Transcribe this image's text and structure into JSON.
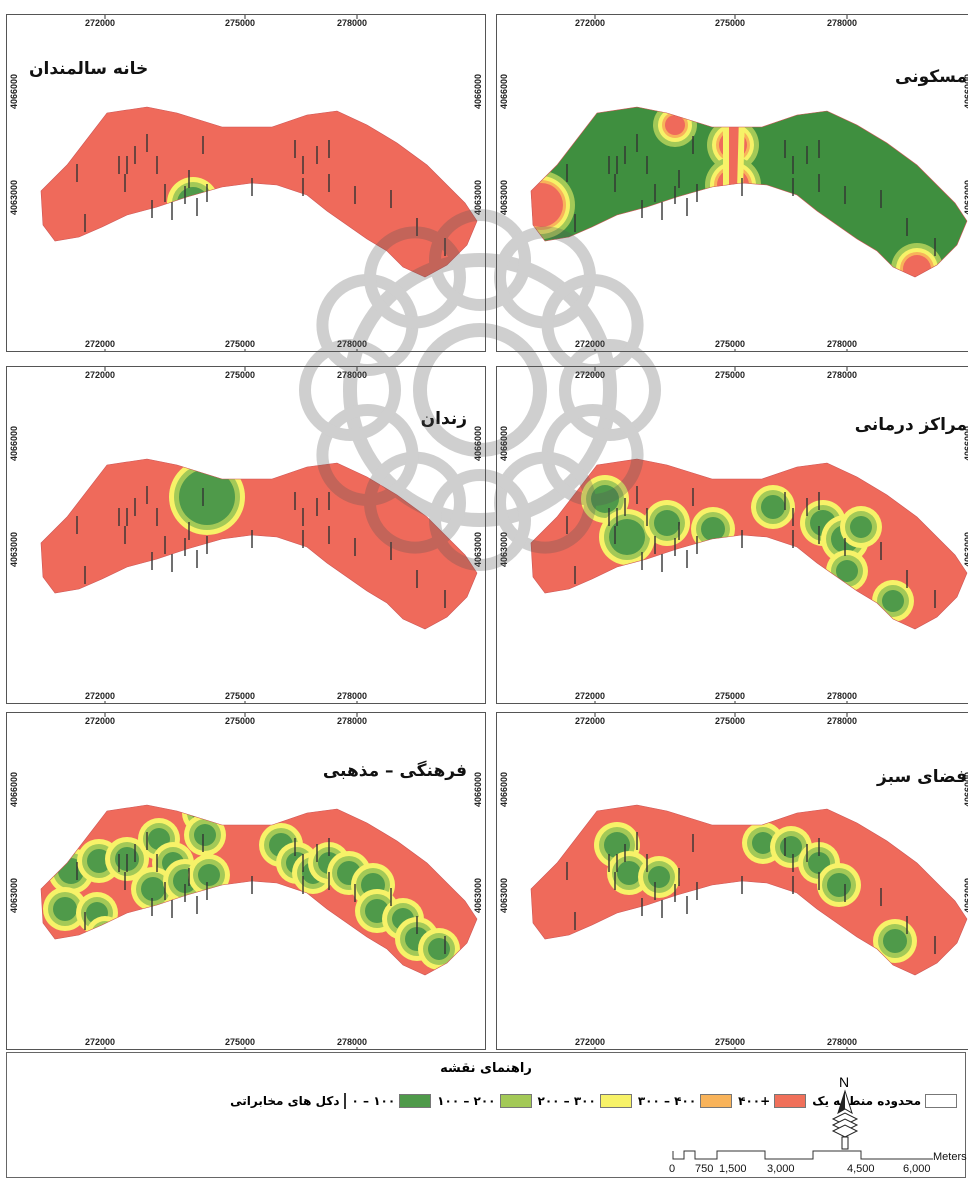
{
  "map_panels": [
    {
      "id": "p1",
      "title": "خانه سالمندان",
      "scheme": "red"
    },
    {
      "id": "p2",
      "title": "مسکونی",
      "scheme": "green"
    },
    {
      "id": "p3",
      "title": "زندان",
      "scheme": "red"
    },
    {
      "id": "p4",
      "title": "مراکز درمانی",
      "scheme": "red"
    },
    {
      "id": "p5",
      "title": "فرهنگی – مذهبی",
      "scheme": "red"
    },
    {
      "id": "p6",
      "title": "فضای سبز",
      "scheme": "red"
    }
  ],
  "axis": {
    "x_ticks": [
      "272000",
      "275000",
      "278000"
    ],
    "y_ticks": [
      "4066000",
      "4063000"
    ]
  },
  "legend": {
    "title": "راهنمای نقشه",
    "items": [
      {
        "label": "دکل های مخابراتی",
        "symbol": "tower"
      },
      {
        "label": "۱۰۰ – ۰",
        "color": "#4f9a4a"
      },
      {
        "label": "۲۰۰ – ۱۰۰",
        "color": "#a3c957"
      },
      {
        "label": "۳۰۰ – ۲۰۰",
        "color": "#f7f268"
      },
      {
        "label": "۴۰۰ – ۳۰۰",
        "color": "#f8b35a"
      },
      {
        "label": "+۴۰۰",
        "color": "#f0705a"
      },
      {
        "label": "محدوده منطقه یک",
        "color": "#ffffff"
      }
    ]
  },
  "north_arrow": {
    "label": "N"
  },
  "scale_bar": {
    "unit": "Meters",
    "labels": [
      "0",
      "750",
      "1,500",
      "3,000",
      "4,500",
      "6,000"
    ]
  },
  "colors": {
    "red": "#ef6a5b",
    "green": "#3f8f3f",
    "yellow": "#f7f268",
    "lightgreen": "#a3c957",
    "orange": "#f8b35a"
  }
}
